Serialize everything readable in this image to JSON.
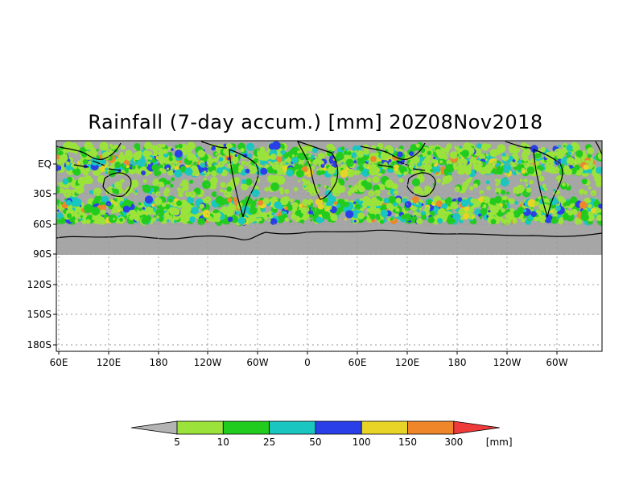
{
  "title": "Rainfall (7-day accum.) [mm] 20Z08Nov2018",
  "axes": {
    "y_ticks": [
      "EQ",
      "30S",
      "60S",
      "90S",
      "120S",
      "150S",
      "180S"
    ],
    "x_ticks": [
      "60E",
      "120E",
      "180",
      "120W",
      "60W",
      "0",
      "60E",
      "120E",
      "180",
      "120W",
      "60W"
    ]
  },
  "colorbar": {
    "unit": "[mm]",
    "levels": [
      "5",
      "10",
      "25",
      "50",
      "100",
      "150",
      "300"
    ],
    "colors": [
      "#b4b4b4",
      "#9be33a",
      "#22cc1e",
      "#19c6c0",
      "#2a3fe8",
      "#e8d426",
      "#ef862a",
      "#ef3a3a"
    ]
  },
  "map": {
    "background_color": "#a6a6a6",
    "empty_color": "#ffffff",
    "grid": true
  }
}
